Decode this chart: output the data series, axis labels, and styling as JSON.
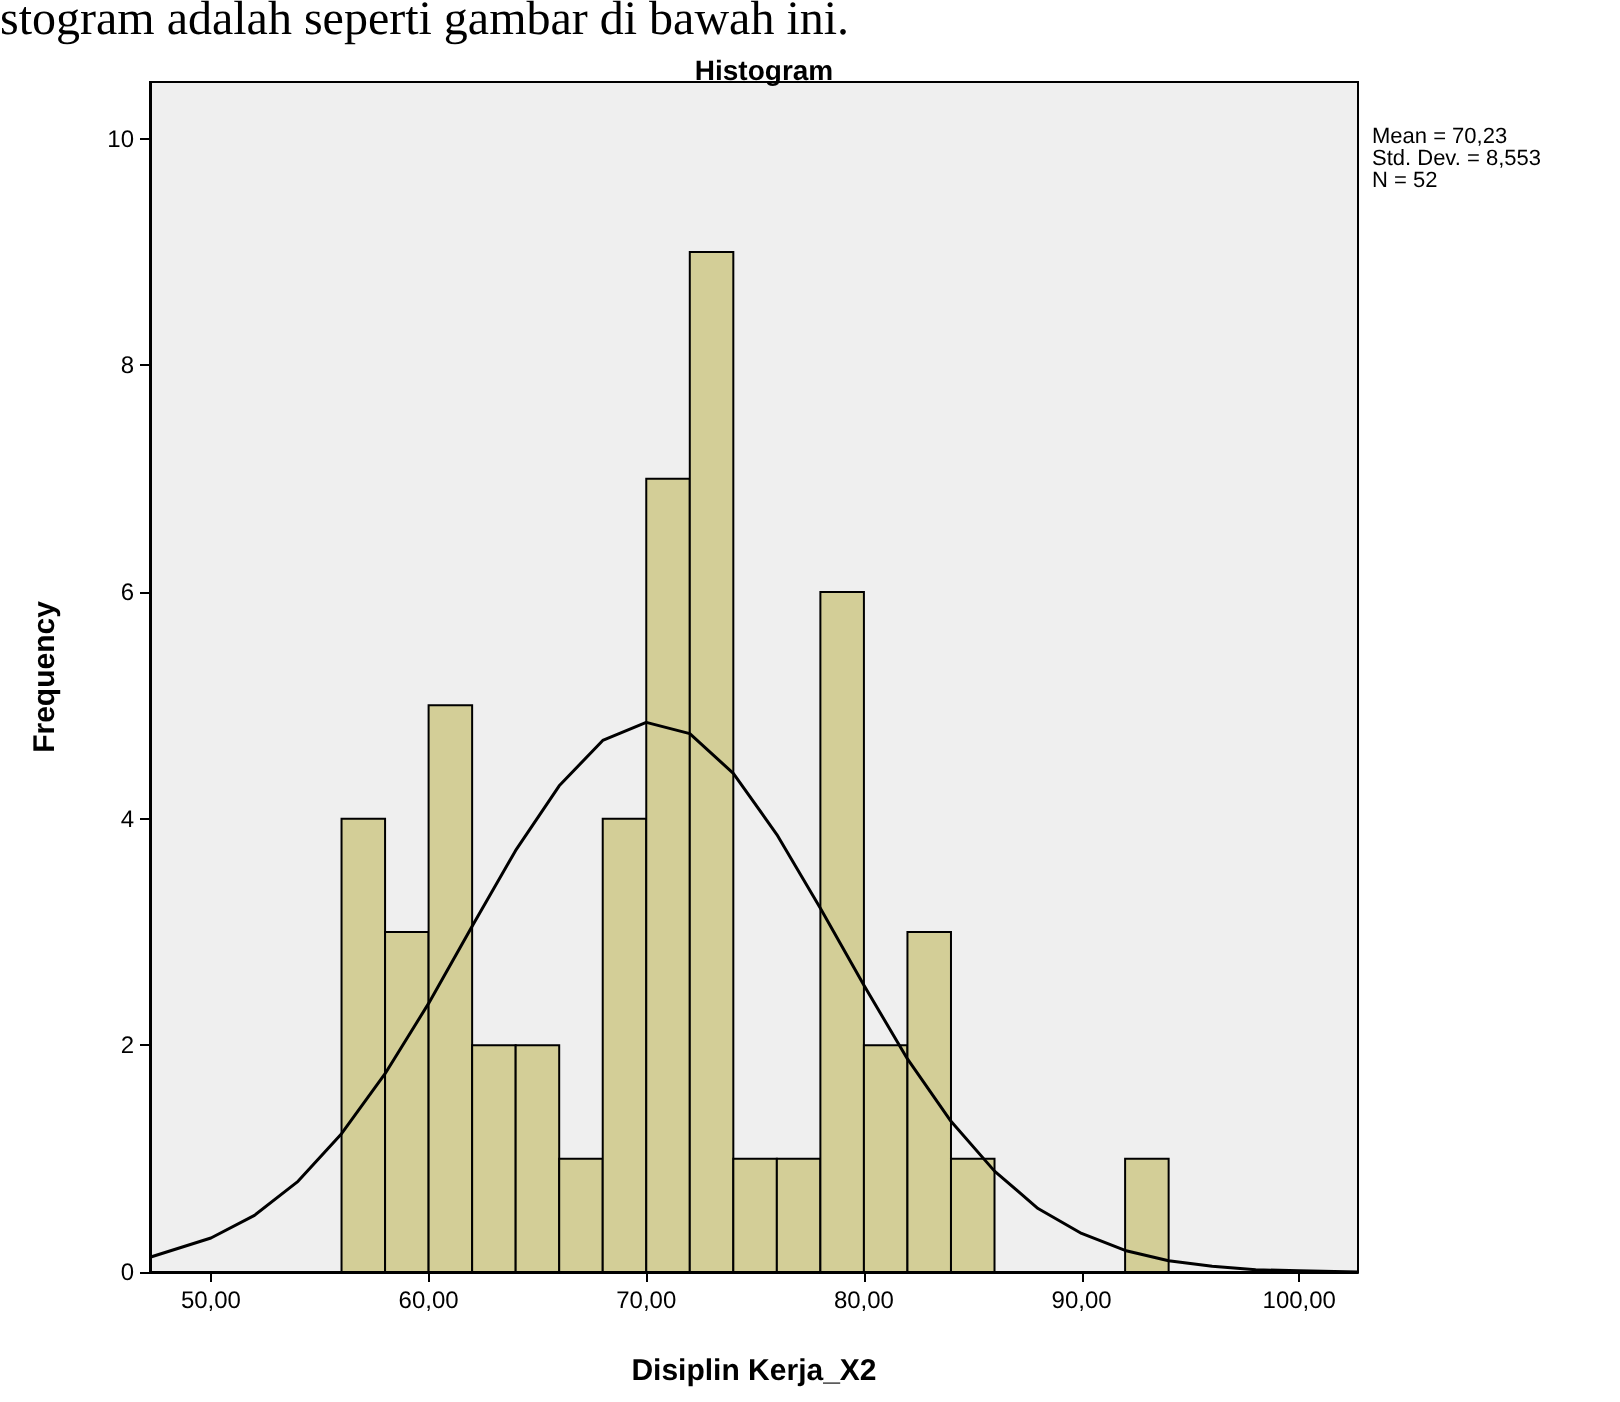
{
  "chart_data": {
    "type": "histogram",
    "title": "Histogram",
    "xlabel": "Disiplin Kerja_X2",
    "ylabel": "Frequency",
    "bins": [
      56,
      58,
      60,
      62,
      64,
      66,
      68,
      70,
      72,
      74,
      76,
      78,
      80,
      82,
      84,
      86,
      88,
      90,
      92,
      94
    ],
    "values": [
      4,
      3,
      5,
      2,
      2,
      1,
      4,
      7,
      9,
      1,
      1,
      6,
      2,
      3,
      1,
      0,
      0,
      0,
      1
    ],
    "color": "#d3ce97",
    "series": [
      {
        "type": "line",
        "color": "#000000",
        "x": [
          47.2,
          50,
          52,
          54,
          56,
          58,
          60,
          62,
          64,
          66,
          68,
          70,
          72,
          74,
          76,
          78,
          80,
          82,
          84,
          86,
          88,
          90,
          92,
          94,
          96,
          98,
          100,
          102.7
        ],
        "values": [
          0.13,
          0.3,
          0.5,
          0.8,
          1.22,
          1.75,
          2.37,
          3.05,
          3.72,
          4.29,
          4.69,
          4.85,
          4.75,
          4.4,
          3.86,
          3.21,
          2.53,
          1.88,
          1.33,
          0.89,
          0.56,
          0.34,
          0.19,
          0.1,
          0.05,
          0.02,
          0.01,
          0
        ]
      }
    ],
    "xlim": [
      47.2,
      102.7
    ],
    "xticks": [
      {
        "value": 50,
        "label": "50,00"
      },
      {
        "value": 60,
        "label": "60,00"
      },
      {
        "value": 70,
        "label": "70,00"
      },
      {
        "value": 80,
        "label": "80,00"
      },
      {
        "value": 90,
        "label": "90,00"
      },
      {
        "value": 100,
        "label": "100,00"
      }
    ],
    "ylim": [
      0,
      10.5
    ],
    "yticks": [
      0,
      2,
      4,
      6,
      8,
      10
    ],
    "grid": false,
    "marker": "none",
    "annotations": [
      "stogram adalah seperti gambar di bawah ini.",
      "Mean = 70,23",
      "Std. Dev. = 8,553",
      "N = 52"
    ]
  }
}
